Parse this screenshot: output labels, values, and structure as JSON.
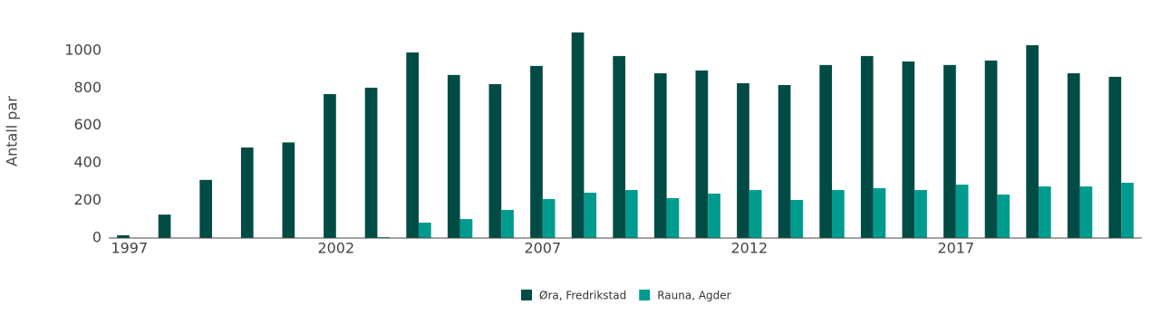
{
  "chart_data": {
    "type": "bar",
    "y_label": "Antall par",
    "x": [
      1997,
      1998,
      1999,
      2000,
      2001,
      2002,
      2003,
      2004,
      2005,
      2006,
      2007,
      2008,
      2009,
      2010,
      2011,
      2012,
      2013,
      2014,
      2015,
      2016,
      2017,
      2018,
      2019,
      2020,
      2021
    ],
    "xlim": [
      1996.5,
      2021.5
    ],
    "xticks": [
      1997,
      2002,
      2007,
      2012,
      2017
    ],
    "ylim": [
      0,
      1125
    ],
    "yticks": [
      0,
      200,
      400,
      600,
      800,
      1000
    ],
    "grid": false,
    "legend": "bottom",
    "series": [
      {
        "name": "Øra, Fredrikstad",
        "color": "#004c45",
        "values": [
          15,
          125,
          310,
          483,
          510,
          768,
          802,
          990,
          870,
          821,
          918,
          1097,
          971,
          879,
          894,
          826,
          816,
          923,
          971,
          942,
          923,
          947,
          1029,
          879,
          860
        ]
      },
      {
        "name": "Rauna, Agder",
        "color": "#009b8f",
        "values": [
          null,
          null,
          null,
          null,
          null,
          null,
          5,
          82,
          101,
          150,
          208,
          242,
          256,
          213,
          237,
          256,
          203,
          256,
          266,
          256,
          285,
          232,
          275,
          275,
          295
        ]
      }
    ]
  }
}
